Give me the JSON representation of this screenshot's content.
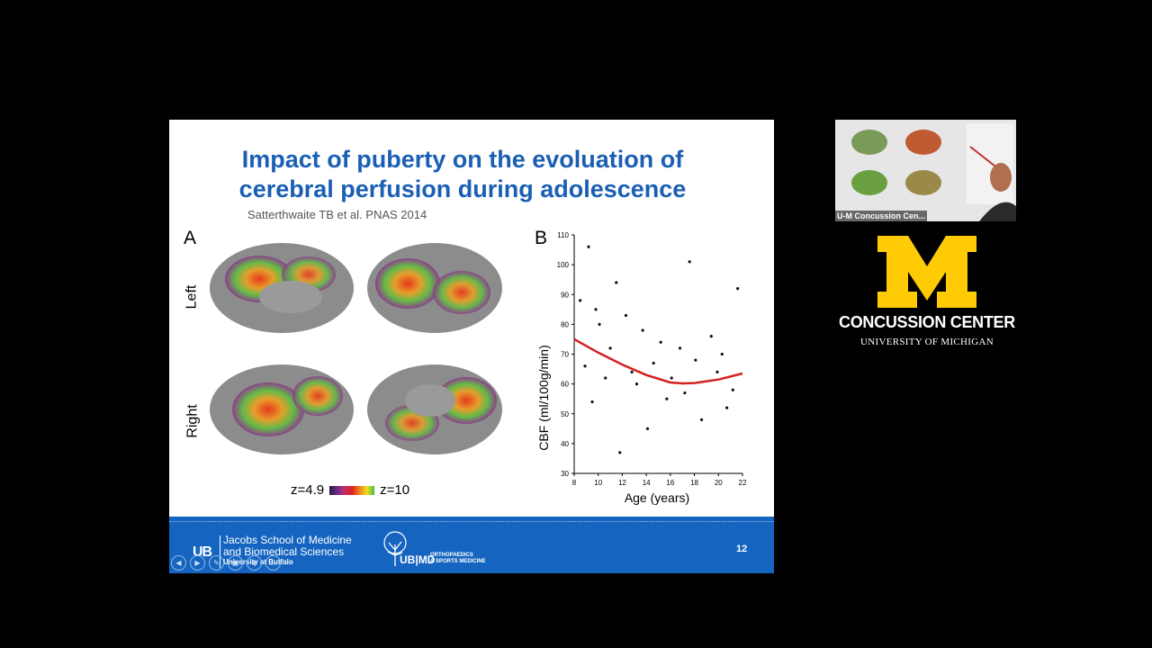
{
  "slide": {
    "title_line1": "Impact of puberty on the evoluation of",
    "title_line2": "cerebral perfusion during adolescence",
    "citation": "Satterthwaite TB et al. PNAS 2014",
    "panel_a": "A",
    "panel_b": "B",
    "label_left": "Left",
    "label_right": "Right",
    "scale_min": "z=4.9",
    "scale_max": "z=10",
    "slide_number": "12"
  },
  "footer": {
    "ub_logo": "UB",
    "school_line1": "Jacobs School of Medicine",
    "school_line2": "and Biomedical Sciences",
    "school_sub": "University at Buffalo",
    "ubmd": "UB|MD",
    "ubmd_sub_line1": "ORTHOPAEDICS",
    "ubmd_sub_line2": "& SPORTS MEDICINE"
  },
  "nav": {
    "prev": "◀",
    "next": "▶",
    "pen": "✎",
    "view": "▣",
    "zoom": "⊕",
    "more": "…"
  },
  "video": {
    "label": "U-M Concussion Cen..."
  },
  "brand": {
    "logo": "M",
    "title": "CONCUSSION CENTER",
    "subtitle": "UNIVERSITY OF MICHIGAN",
    "maize": "#FFCB05",
    "blue": "#1565c0"
  },
  "chart_data": {
    "type": "scatter",
    "ylabel": "CBF (ml/100g/min)",
    "xlabel": "Age (years)",
    "xlim": [
      8,
      22
    ],
    "ylim": [
      30,
      110
    ],
    "x_ticks": [
      8,
      10,
      12,
      14,
      16,
      18,
      20,
      22
    ],
    "y_ticks": [
      30,
      40,
      50,
      60,
      70,
      80,
      90,
      100,
      110
    ],
    "fit_line": {
      "color": "#d42020",
      "x": [
        8,
        10,
        12,
        14,
        16,
        17,
        18,
        20,
        22
      ],
      "y": [
        75,
        70.5,
        66.5,
        63,
        60.5,
        60.2,
        60.3,
        61.5,
        63.5
      ]
    },
    "points": {
      "x": [
        9.2,
        17.6,
        11.5,
        8.5,
        9.8,
        12.3,
        10.1,
        21.6,
        13.7,
        15.2,
        16.8,
        19.4,
        20.3,
        18.1,
        14.6,
        11.0,
        8.9,
        12.8,
        16.1,
        19.9,
        21.2,
        10.6,
        13.2,
        17.2,
        15.7,
        9.5,
        20.7,
        18.6,
        14.1,
        11.8
      ],
      "y": [
        106,
        101,
        94,
        88,
        85,
        83,
        80,
        92,
        78,
        74,
        72,
        76,
        70,
        68,
        67,
        72,
        66,
        64,
        62,
        64,
        58,
        62,
        60,
        57,
        55,
        54,
        52,
        48,
        45,
        37
      ]
    }
  }
}
